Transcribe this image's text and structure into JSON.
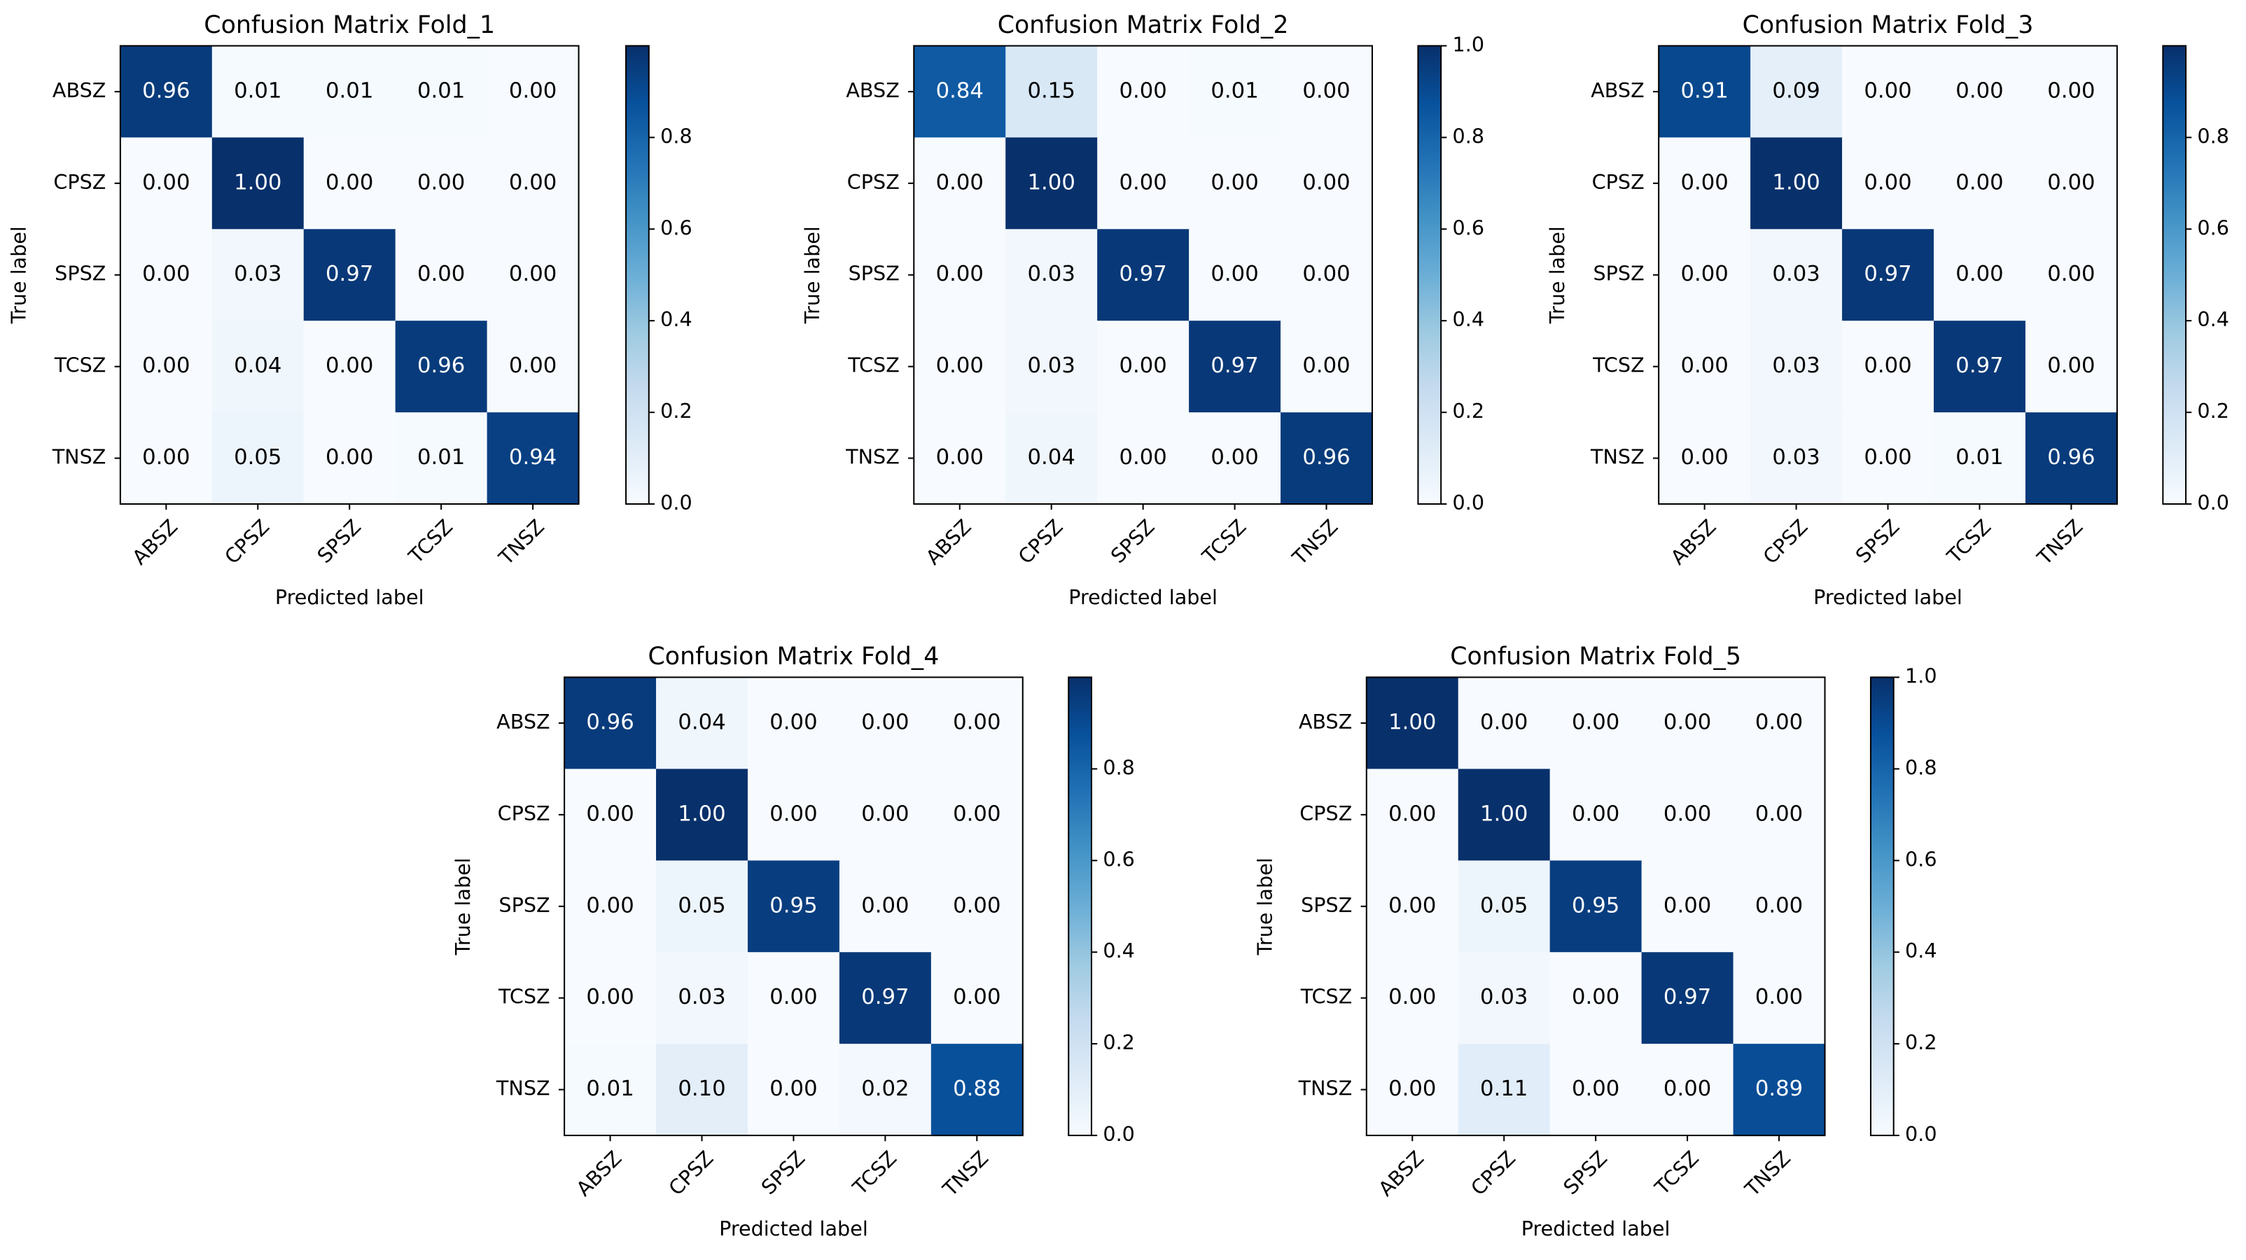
{
  "chart_data": [
    {
      "type": "heatmap",
      "title": "Confusion Matrix Fold_1",
      "x_label": "Predicted label",
      "y_label": "True label",
      "colormap": "Blues",
      "x_categories": [
        "ABSZ",
        "CPSZ",
        "SPSZ",
        "TCSZ",
        "TNSZ"
      ],
      "y_categories": [
        "ABSZ",
        "CPSZ",
        "SPSZ",
        "TCSZ",
        "TNSZ"
      ],
      "values": [
        [
          0.96,
          0.01,
          0.01,
          0.01,
          0
        ],
        [
          0,
          1,
          0,
          0,
          0
        ],
        [
          0,
          0.03,
          0.97,
          0,
          0
        ],
        [
          0,
          0.04,
          0,
          0.96,
          0
        ],
        [
          0,
          0.05,
          0,
          0.01,
          0.94
        ]
      ],
      "value_labels": [
        [
          "0.96",
          "0.01",
          "0.01",
          "0.01",
          "0.00"
        ],
        [
          "0.00",
          "1.00",
          "0.00",
          "0.00",
          "0.00"
        ],
        [
          "0.00",
          "0.03",
          "0.97",
          "0.00",
          "0.00"
        ],
        [
          "0.00",
          "0.04",
          "0.00",
          "0.96",
          "0.00"
        ],
        [
          "0.00",
          "0.05",
          "0.00",
          "0.01",
          "0.94"
        ]
      ],
      "clim": [
        0,
        1
      ],
      "cticks": [
        {
          "value": 0,
          "label": "0.0"
        },
        0.2,
        0.4,
        0.6,
        0.8
      ]
    },
    {
      "type": "heatmap",
      "title": "Confusion Matrix Fold_2",
      "x_label": "Predicted label",
      "y_label": "True label",
      "colormap": "Blues",
      "x_categories": [
        "ABSZ",
        "CPSZ",
        "SPSZ",
        "TCSZ",
        "TNSZ"
      ],
      "y_categories": [
        "ABSZ",
        "CPSZ",
        "SPSZ",
        "TCSZ",
        "TNSZ"
      ],
      "values": [
        [
          0.84,
          0.15,
          0,
          0.01,
          0
        ],
        [
          0,
          1,
          0,
          0,
          0
        ],
        [
          0,
          0.03,
          0.97,
          0,
          0
        ],
        [
          0,
          0.03,
          0,
          0.97,
          0
        ],
        [
          0,
          0.04,
          0,
          0,
          0.96
        ]
      ],
      "value_labels": [
        [
          "0.84",
          "0.15",
          "0.00",
          "0.01",
          "0.00"
        ],
        [
          "0.00",
          "1.00",
          "0.00",
          "0.00",
          "0.00"
        ],
        [
          "0.00",
          "0.03",
          "0.97",
          "0.00",
          "0.00"
        ],
        [
          "0.00",
          "0.03",
          "0.00",
          "0.97",
          "0.00"
        ],
        [
          "0.00",
          "0.04",
          "0.00",
          "0.00",
          "0.96"
        ]
      ],
      "clim": [
        0,
        1
      ],
      "cticks": [
        {
          "value": 0,
          "label": "0.0"
        },
        0.2,
        0.4,
        0.6,
        0.8,
        {
          "value": 1,
          "label": "1.0"
        }
      ]
    },
    {
      "type": "heatmap",
      "title": "Confusion Matrix Fold_3",
      "x_label": "Predicted label",
      "y_label": "True label",
      "colormap": "Blues",
      "x_categories": [
        "ABSZ",
        "CPSZ",
        "SPSZ",
        "TCSZ",
        "TNSZ"
      ],
      "y_categories": [
        "ABSZ",
        "CPSZ",
        "SPSZ",
        "TCSZ",
        "TNSZ"
      ],
      "values": [
        [
          0.91,
          0.09,
          0,
          0,
          0
        ],
        [
          0,
          1,
          0,
          0,
          0
        ],
        [
          0,
          0.03,
          0.97,
          0,
          0
        ],
        [
          0,
          0.03,
          0,
          0.97,
          0
        ],
        [
          0,
          0.03,
          0,
          0.01,
          0.96
        ]
      ],
      "value_labels": [
        [
          "0.91",
          "0.09",
          "0.00",
          "0.00",
          "0.00"
        ],
        [
          "0.00",
          "1.00",
          "0.00",
          "0.00",
          "0.00"
        ],
        [
          "0.00",
          "0.03",
          "0.97",
          "0.00",
          "0.00"
        ],
        [
          "0.00",
          "0.03",
          "0.00",
          "0.97",
          "0.00"
        ],
        [
          "0.00",
          "0.03",
          "0.00",
          "0.01",
          "0.96"
        ]
      ],
      "clim": [
        0,
        1
      ],
      "cticks": [
        {
          "value": 0,
          "label": "0.0"
        },
        0.2,
        0.4,
        0.6,
        0.8
      ]
    },
    {
      "type": "heatmap",
      "title": "Confusion Matrix Fold_4",
      "x_label": "Predicted label",
      "y_label": "True label",
      "colormap": "Blues",
      "x_categories": [
        "ABSZ",
        "CPSZ",
        "SPSZ",
        "TCSZ",
        "TNSZ"
      ],
      "y_categories": [
        "ABSZ",
        "CPSZ",
        "SPSZ",
        "TCSZ",
        "TNSZ"
      ],
      "values": [
        [
          0.96,
          0.04,
          0,
          0,
          0
        ],
        [
          0,
          1,
          0,
          0,
          0
        ],
        [
          0,
          0.05,
          0.95,
          0,
          0
        ],
        [
          0,
          0.03,
          0,
          0.97,
          0
        ],
        [
          0.01,
          0.1,
          0,
          0.02,
          0.88
        ]
      ],
      "value_labels": [
        [
          "0.96",
          "0.04",
          "0.00",
          "0.00",
          "0.00"
        ],
        [
          "0.00",
          "1.00",
          "0.00",
          "0.00",
          "0.00"
        ],
        [
          "0.00",
          "0.05",
          "0.95",
          "0.00",
          "0.00"
        ],
        [
          "0.00",
          "0.03",
          "0.00",
          "0.97",
          "0.00"
        ],
        [
          "0.01",
          "0.10",
          "0.00",
          "0.02",
          "0.88"
        ]
      ],
      "clim": [
        0,
        1
      ],
      "cticks": [
        {
          "value": 0,
          "label": "0.0"
        },
        0.2,
        0.4,
        0.6,
        0.8
      ]
    },
    {
      "type": "heatmap",
      "title": "Confusion Matrix Fold_5",
      "x_label": "Predicted label",
      "y_label": "True label",
      "colormap": "Blues",
      "x_categories": [
        "ABSZ",
        "CPSZ",
        "SPSZ",
        "TCSZ",
        "TNSZ"
      ],
      "y_categories": [
        "ABSZ",
        "CPSZ",
        "SPSZ",
        "TCSZ",
        "TNSZ"
      ],
      "values": [
        [
          1,
          0,
          0,
          0,
          0
        ],
        [
          0,
          1,
          0,
          0,
          0
        ],
        [
          0,
          0.05,
          0.95,
          0,
          0
        ],
        [
          0,
          0.03,
          0,
          0.97,
          0
        ],
        [
          0,
          0.11,
          0,
          0,
          0.89
        ]
      ],
      "value_labels": [
        [
          "1.00",
          "0.00",
          "0.00",
          "0.00",
          "0.00"
        ],
        [
          "0.00",
          "1.00",
          "0.00",
          "0.00",
          "0.00"
        ],
        [
          "0.00",
          "0.05",
          "0.95",
          "0.00",
          "0.00"
        ],
        [
          "0.00",
          "0.03",
          "0.00",
          "0.97",
          "0.00"
        ],
        [
          "0.00",
          "0.11",
          "0.00",
          "0.00",
          "0.89"
        ]
      ],
      "clim": [
        0,
        1
      ],
      "cticks": [
        {
          "value": 0,
          "label": "0.0"
        },
        0.2,
        0.4,
        0.6,
        0.8,
        {
          "value": 1,
          "label": "1.0"
        }
      ]
    }
  ]
}
